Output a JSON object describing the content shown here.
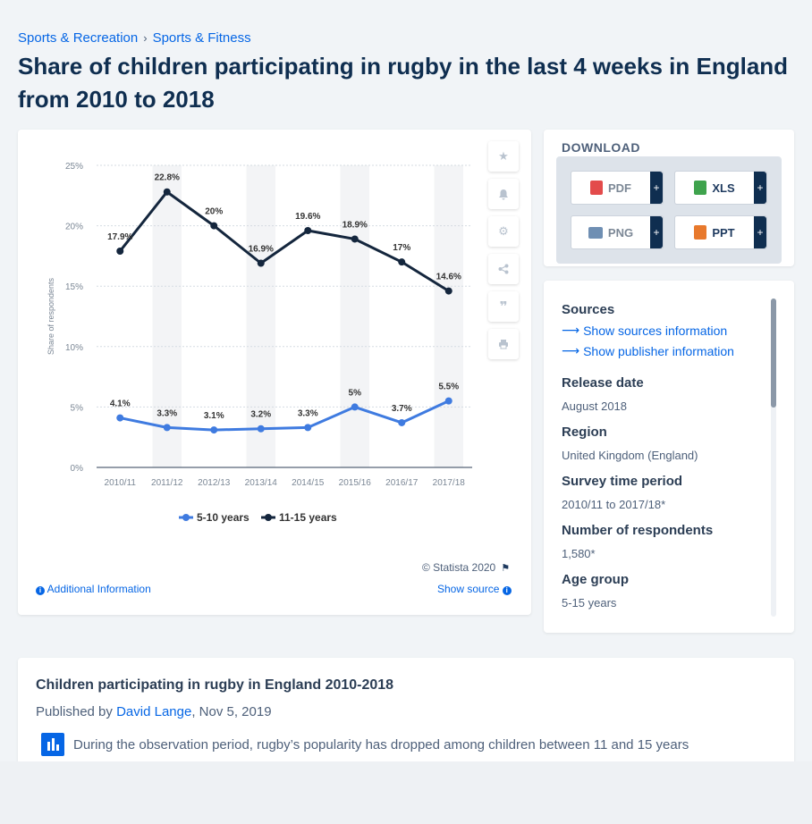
{
  "breadcrumb": {
    "items": [
      "Sports & Recreation",
      "Sports & Fitness"
    ],
    "separator": "›"
  },
  "page_title": "Share of children participating in rugby in the last 4 weeks in England from 2010 to 2018",
  "chart_toolbar": {
    "icons": [
      "star-icon",
      "bell-icon",
      "gear-icon",
      "share-icon",
      "quote-icon",
      "print-icon"
    ]
  },
  "chart_footer": {
    "copyright": "© Statista 2020",
    "additional_info": "Additional Information",
    "show_source": "Show source"
  },
  "download": {
    "title": "DOWNLOAD",
    "buttons": [
      {
        "label": "PDF",
        "plus": "+",
        "color": "#e34b4b"
      },
      {
        "label": "XLS",
        "plus": "+",
        "color": "#3fa34d"
      },
      {
        "label": "PNG",
        "plus": "+",
        "color": "#6f8fb3"
      },
      {
        "label": "PPT",
        "plus": "+",
        "color": "#e8792c"
      }
    ]
  },
  "info": {
    "sources_heading": "Sources",
    "show_sources": "Show sources information",
    "show_publisher": "Show publisher information",
    "release_date_label": "Release date",
    "release_date": "August 2018",
    "region_label": "Region",
    "region": "United Kingdom (England)",
    "survey_period_label": "Survey time period",
    "survey_period": "2010/11 to 2017/18*",
    "respondents_label": "Number of respondents",
    "respondents": "1,580*",
    "age_group_label": "Age group",
    "age_group": "5-15 years"
  },
  "article": {
    "title": "Children participating in rugby in England 2010-2018",
    "published_by": "Published by",
    "author": "David Lange",
    "date": ", Nov 5, 2019",
    "text": "During the observation period, rugby’s popularity has dropped among children between 11 and 15 years"
  },
  "colors": {
    "series_5_10": "#3f7be0",
    "series_11_15": "#14263d",
    "link": "#0666e5"
  },
  "chart_data": {
    "type": "line",
    "title": "",
    "xlabel": "",
    "ylabel": "Share of respondents",
    "categories": [
      "2010/11",
      "2011/12",
      "2012/13",
      "2013/14",
      "2014/15",
      "2015/16",
      "2016/17",
      "2017/18"
    ],
    "y_ticks": [
      "0%",
      "5%",
      "10%",
      "15%",
      "20%",
      "25%"
    ],
    "ylim": [
      0,
      25
    ],
    "grid": true,
    "legend_position": "bottom",
    "series": [
      {
        "name": "5-10 years",
        "values": [
          4.1,
          3.3,
          3.1,
          3.2,
          3.3,
          5,
          3.7,
          5.5
        ],
        "labels": [
          "4.1%",
          "3.3%",
          "3.1%",
          "3.2%",
          "3.3%",
          "5%",
          "3.7%",
          "5.5%"
        ]
      },
      {
        "name": "11-15 years",
        "values": [
          17.9,
          22.8,
          20,
          16.9,
          19.6,
          18.9,
          17,
          14.6
        ],
        "labels": [
          "17.9%",
          "22.8%",
          "20%",
          "16.9%",
          "19.6%",
          "18.9%",
          "17%",
          "14.6%"
        ]
      }
    ]
  }
}
